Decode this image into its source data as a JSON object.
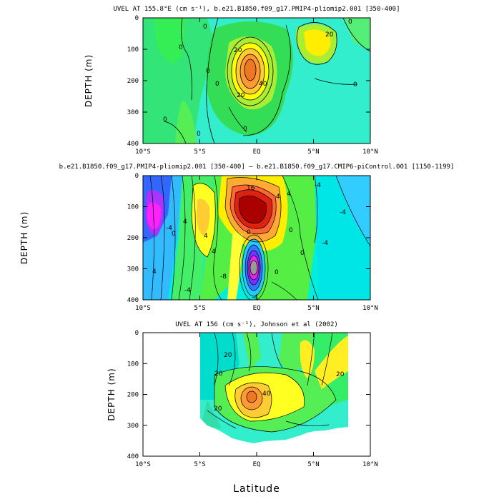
{
  "chart_data": [
    {
      "type": "heatmap",
      "title": "UVEL AT 155.8°E (cm s⁻¹), b.e21.B1850.f09_g17.PMIP4-pliomip2.001 [350-400]",
      "xlabel": "",
      "ylabel": "DEPTH (m)",
      "xlim": [
        -10,
        10
      ],
      "ylim": [
        400,
        0
      ],
      "x_ticks": [
        "10°S",
        "5°S",
        "EQ",
        "5°N",
        "10°N"
      ],
      "y_ticks": [
        "0",
        "100",
        "200",
        "300",
        "400"
      ],
      "contour_labels": [
        "0",
        "0",
        "0",
        "0",
        "0",
        "0",
        "0",
        "20",
        "20",
        "40",
        "20",
        "0",
        "0"
      ],
      "features": [
        {
          "name": "core",
          "lat": -0.3,
          "depth": 165,
          "max": 55
        },
        {
          "name": "secondary",
          "lat": 5.5,
          "depth": 60,
          "max": 25
        }
      ]
    },
    {
      "type": "heatmap",
      "title": "b.e21.B1850.f09_g17.PMIP4-pliomip2.001 [350-400] – b.e21.B1850.f09_g17.CMIP6-piControl.001 [1150-1199]",
      "xlabel": "",
      "ylabel": "DEPTH (m)",
      "xlim": [
        -10,
        10
      ],
      "ylim": [
        400,
        0
      ],
      "x_ticks": [
        "10°S",
        "5°S",
        "EQ",
        "5°N",
        "10°N"
      ],
      "y_ticks": [
        "0",
        "100",
        "200",
        "300",
        "400"
      ],
      "contour_labels": [
        "16",
        "4",
        "-4",
        "4",
        "0",
        "0",
        "-4",
        "4",
        "4",
        "-4",
        "4",
        "0",
        "-4",
        "-8",
        "4",
        "0",
        "0",
        "-4",
        "-4"
      ],
      "features": [
        {
          "name": "positive",
          "lat": -0.8,
          "depth": 125,
          "max": 24
        },
        {
          "name": "negative",
          "lat": -0.1,
          "depth": 300,
          "max": -24
        },
        {
          "name": "west-negative",
          "lat": -9.5,
          "depth": 120,
          "max": -16
        }
      ]
    },
    {
      "type": "heatmap",
      "title": "UVEL AT 156 (cm s⁻¹), Johnson et al (2002)",
      "xlabel": "Latitude",
      "ylabel": "DEPTH (m)",
      "xlim": [
        -10,
        10
      ],
      "ylim": [
        400,
        0
      ],
      "x_ticks": [
        "10°S",
        "5°S",
        "EQ",
        "5°N",
        "10°N"
      ],
      "y_ticks": [
        "0",
        "100",
        "200",
        "300",
        "400"
      ],
      "contour_labels": [
        "20",
        "40",
        "20",
        "20",
        "20"
      ],
      "features": [
        {
          "name": "core",
          "lat": -0.5,
          "depth": 200,
          "max": 60
        }
      ]
    }
  ]
}
